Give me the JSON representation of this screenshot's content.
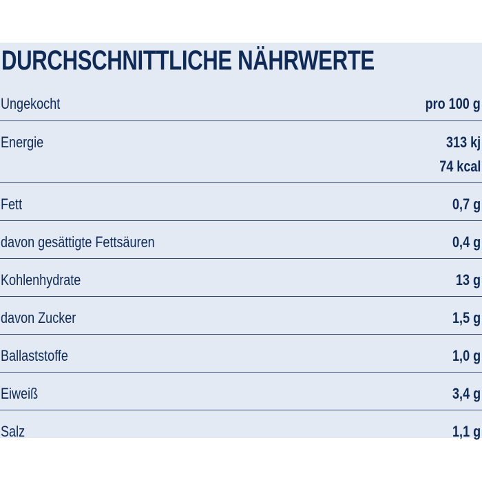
{
  "title": "DURCHSCHNITTLICHE NÄHRWERTE",
  "table": {
    "header": [
      "Ungekocht",
      "pro 100 g"
    ],
    "rows": [
      {
        "label": "Energie",
        "values": [
          "313 kj",
          "74 kcal"
        ]
      },
      {
        "label": "Fett",
        "values": [
          "0,7 g"
        ]
      },
      {
        "label": "davon gesättigte Fettsäuren",
        "values": [
          "0,4 g"
        ]
      },
      {
        "label": "Kohlenhydrate",
        "values": [
          "13 g"
        ]
      },
      {
        "label": "davon Zucker",
        "values": [
          "1,5 g"
        ]
      },
      {
        "label": "Ballaststoffe",
        "values": [
          "1,0 g"
        ]
      },
      {
        "label": "Eiweiß",
        "values": [
          "3,4 g"
        ]
      },
      {
        "label": "Salz",
        "values": [
          "1,1 g"
        ]
      }
    ]
  }
}
